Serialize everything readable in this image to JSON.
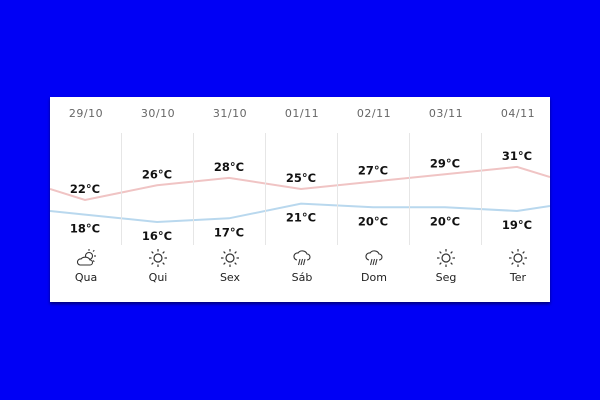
{
  "colors": {
    "high": "#f0c4c4",
    "low": "#b9d8ee",
    "background": "#0000f5"
  },
  "days": [
    {
      "date": "29/10",
      "high": "22°C",
      "low": "18°C",
      "high_value": 22,
      "low_value": 18,
      "day": "Qua",
      "icon": "partly-cloudy-icon"
    },
    {
      "date": "30/10",
      "high": "26°C",
      "low": "16°C",
      "high_value": 26,
      "low_value": 16,
      "day": "Qui",
      "icon": "sun-icon"
    },
    {
      "date": "31/10",
      "high": "28°C",
      "low": "17°C",
      "high_value": 28,
      "low_value": 17,
      "day": "Sex",
      "icon": "sun-icon"
    },
    {
      "date": "01/11",
      "high": "25°C",
      "low": "21°C",
      "high_value": 25,
      "low_value": 21,
      "day": "Sáb",
      "icon": "rain-cloud-icon"
    },
    {
      "date": "02/11",
      "high": "27°C",
      "low": "20°C",
      "high_value": 27,
      "low_value": 20,
      "day": "Dom",
      "icon": "rain-cloud-icon"
    },
    {
      "date": "03/11",
      "high": "29°C",
      "low": "20°C",
      "high_value": 29,
      "low_value": 20,
      "day": "Seg",
      "icon": "sun-icon"
    },
    {
      "date": "04/11",
      "high": "31°C",
      "low": "19°C",
      "high_value": 31,
      "low_value": 19,
      "day": "Ter",
      "icon": "sun-icon"
    }
  ]
}
